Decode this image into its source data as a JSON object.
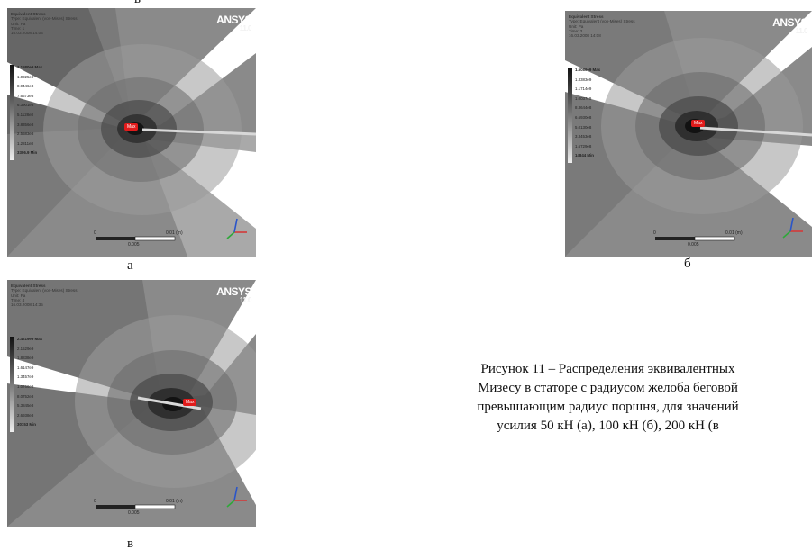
{
  "top_cut_label": "в",
  "panels": [
    {
      "id": "a",
      "legend": {
        "title": "Equivalent Stress",
        "type": "Type: Equivalent (von-Mises) Stress",
        "unit": "Unit: Pa",
        "time": "Time: 1",
        "date": "16.03.2008 14:04"
      },
      "scale": [
        "1.1580e9 Max",
        "1.0225e9",
        "8.9446e8",
        "7.6673e8",
        "6.3901e8",
        "5.1128e8",
        "3.8356e8",
        "2.5583e8",
        "1.2811e8",
        "3306.9 Min"
      ],
      "scalebar": {
        "left": "0",
        "right": "0.01 (m)",
        "mid": "0.005"
      },
      "max_tag": "Max",
      "letter": "а"
    },
    {
      "id": "b",
      "legend": {
        "title": "Equivalent Stress",
        "type": "Type: Equivalent (von-Mises) Stress",
        "unit": "Unit: Pa",
        "time": "Time: 3",
        "date": "16.03.2008 14:08"
      },
      "scale": [
        "1.5086e9 Max",
        "1.3383e9",
        "1.1714e9",
        "1.0037e9",
        "8.3644e8",
        "6.6930e8",
        "5.0130e8",
        "3.3453e8",
        "1.6729e8",
        "14844 Min"
      ],
      "scalebar": {
        "left": "0",
        "right": "0.01 (m)",
        "mid": "0.005"
      },
      "max_tag": "Max",
      "letter": "б"
    },
    {
      "id": "c",
      "legend": {
        "title": "Equivalent Stress",
        "type": "Type: Equivalent (von-Mises) Stress",
        "unit": "Unit: Pa",
        "time": "Time: 4",
        "date": "16.03.2008 14:35"
      },
      "scale": [
        "2.4219e9 Max",
        "2.1529e9",
        "1.8838e9",
        "1.6147e9",
        "1.3457e9",
        "1.0766e9",
        "8.0752e8",
        "5.3845e8",
        "2.6938e8",
        "30153 Min"
      ],
      "scalebar": {
        "left": "0",
        "right": "0.01 (m)",
        "mid": "0.005"
      },
      "max_tag": "Max",
      "letter": "в"
    }
  ],
  "logo": {
    "brand": "ANSYS",
    "version": "11.0"
  },
  "caption_lines": [
    "Рисунок 11 – Распределения эквивалентных",
    "Мизесу в статоре с радиусом желоба беговой",
    "превышающим радиус поршня, для значений",
    "усилия 50 кН (а), 100 кН (б), 200 кН (в"
  ],
  "colors": {
    "bg": "#e6e6e6",
    "max_tag": "#e11b1b",
    "axis_x": "#d23a3a",
    "axis_y": "#2fa83a",
    "axis_z": "#2a55c9",
    "scale_shades": [
      "#111111",
      "#242424",
      "#393939",
      "#4f4f4f",
      "#666666",
      "#7d7d7d",
      "#979797",
      "#b3b3b3",
      "#d0d0d0",
      "#ececec"
    ]
  }
}
